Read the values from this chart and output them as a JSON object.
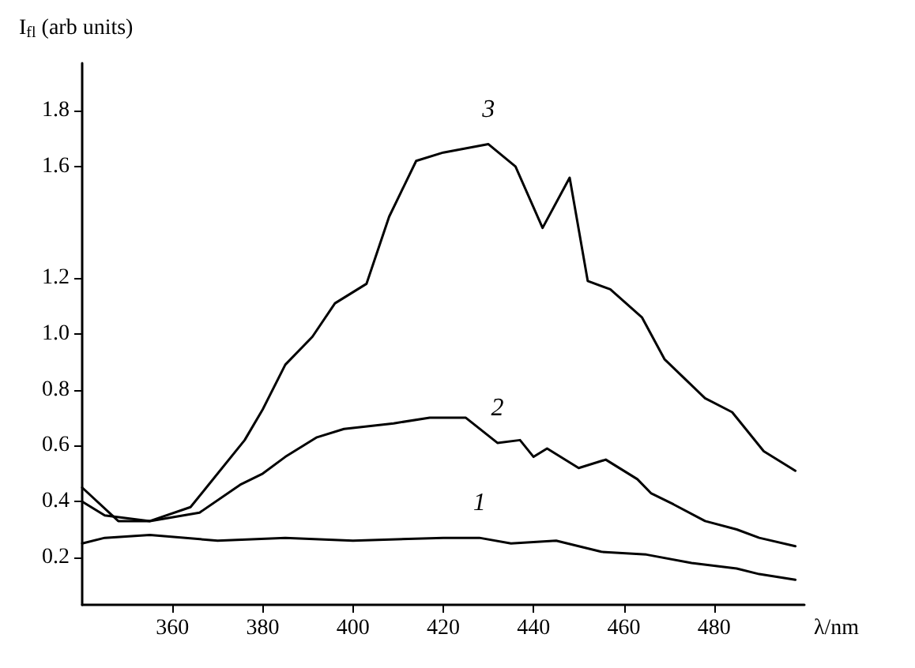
{
  "chart_data": {
    "type": "line",
    "xlabel": "λ/nm",
    "ylabel": "I$_{fl}$ (arb units)",
    "xlim": [
      340,
      500
    ],
    "xticks": [
      360,
      380,
      400,
      420,
      440,
      460,
      480
    ],
    "ylim": [
      0.03,
      1.97
    ],
    "yticks": [
      0.2,
      0.4,
      0.6,
      0.8,
      {
        "value": 1.0,
        "label": "1.0"
      },
      1.2,
      1.6,
      1.8
    ],
    "grid": false,
    "legend": false,
    "marker": "none",
    "line_style": "solid",
    "series": [
      {
        "name": "1",
        "color": "#000000",
        "x": [
          340,
          345,
          355,
          370,
          385,
          400,
          420,
          428,
          435,
          445,
          455,
          465,
          475,
          485,
          490,
          498
        ],
        "values": [
          0.25,
          0.27,
          0.28,
          0.26,
          0.27,
          0.26,
          0.27,
          0.27,
          0.25,
          0.26,
          0.22,
          0.21,
          0.18,
          0.16,
          0.14,
          0.12
        ]
      },
      {
        "name": "2",
        "color": "#000000",
        "x": [
          340,
          345,
          355,
          366,
          375,
          380,
          385,
          392,
          398,
          409,
          417,
          425,
          432,
          437,
          440,
          443,
          450,
          456,
          463,
          466,
          471,
          478,
          485,
          490,
          498
        ],
        "values": [
          0.4,
          0.35,
          0.33,
          0.36,
          0.46,
          0.5,
          0.56,
          0.63,
          0.66,
          0.68,
          0.7,
          0.7,
          0.61,
          0.62,
          0.56,
          0.59,
          0.52,
          0.55,
          0.48,
          0.43,
          0.39,
          0.33,
          0.3,
          0.27,
          0.24
        ]
      },
      {
        "name": "3",
        "color": "#000000",
        "x": [
          340,
          348,
          355,
          364,
          368,
          376,
          380,
          385,
          391,
          396,
          403,
          408,
          414,
          420,
          430,
          436,
          442,
          448,
          452,
          457,
          464,
          469,
          478,
          484,
          491,
          498
        ],
        "values": [
          0.45,
          0.33,
          0.33,
          0.38,
          0.46,
          0.62,
          0.73,
          0.89,
          0.99,
          1.11,
          1.18,
          1.42,
          1.62,
          1.65,
          1.68,
          1.6,
          1.38,
          1.56,
          1.19,
          1.16,
          1.06,
          0.91,
          0.77,
          0.72,
          0.58,
          0.51
        ]
      }
    ]
  }
}
